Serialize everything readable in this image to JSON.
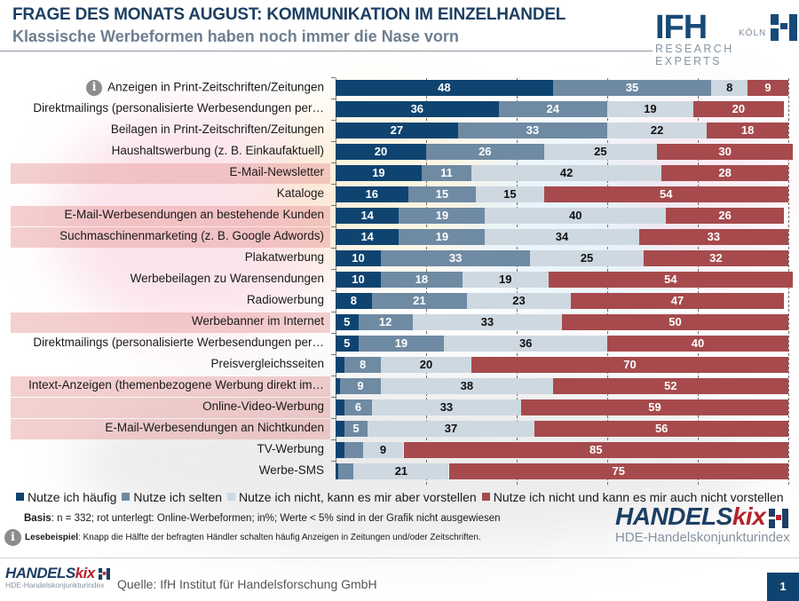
{
  "header": {
    "title": "FRAGE DES MONATS AUGUST: KOMMUNIKATION IM EINZELHANDEL",
    "subtitle": "Klassische Werbeformen haben noch immer die Nase vorn"
  },
  "ifh_logo": {
    "wordmark": "IFH",
    "city": "KÖLN",
    "tagline": "RESEARCH EXPERTS"
  },
  "chart_data": {
    "type": "bar",
    "orientation": "horizontal",
    "stacked": true,
    "title": "FRAGE DES MONATS AUGUST: KOMMUNIKATION IM EINZELHANDEL",
    "subtitle": "Klassische Werbeformen haben noch immer die Nase vorn",
    "xlabel": "",
    "ylabel": "",
    "xlim": [
      0,
      100
    ],
    "unit": "%",
    "grid": true,
    "legend_position": "bottom",
    "label_threshold": 5,
    "categories": [
      "Anzeigen in Print-Zeitschriften/Zeitungen",
      "Direktmailings (personalisierte Werbesendungen per…",
      "Beilagen in Print-Zeitschriften/Zeitungen",
      "Haushaltswerbung (z. B. Einkaufaktuell)",
      "E-Mail-Newsletter",
      "Kataloge",
      "E-Mail-Werbesendungen an bestehende Kunden",
      "Suchmaschinenmarketing (z. B. Google Adwords)",
      "Plakatwerbung",
      "Werbebeilagen zu Warensendungen",
      "Radiowerbung",
      "Werbebanner im Internet",
      "Direktmailings (personalisierte Werbesendungen per…",
      "Preisvergleichsseiten",
      "Intext-Anzeigen (themenbezogene Werbung direkt im…",
      "Online-Video-Werbung",
      "E-Mail-Werbesendungen an Nichtkunden",
      "TV-Werbung",
      "Werbe-SMS"
    ],
    "online_highlight": [
      false,
      false,
      false,
      false,
      true,
      false,
      true,
      true,
      false,
      false,
      false,
      true,
      false,
      false,
      true,
      true,
      true,
      false,
      false
    ],
    "info_icon_row": 0,
    "series": [
      {
        "name": "Nutze ich häufig",
        "color": "#0f4470",
        "values": [
          48,
          36,
          27,
          20,
          19,
          16,
          14,
          14,
          10,
          10,
          8,
          5,
          5,
          2,
          1,
          2,
          2,
          2,
          0.5
        ]
      },
      {
        "name": "Nutze ich selten",
        "color": "#6f8aa3",
        "values": [
          35,
          24,
          33,
          26,
          11,
          15,
          19,
          19,
          33,
          18,
          21,
          12,
          19,
          8,
          9,
          6,
          5,
          4,
          3.5
        ]
      },
      {
        "name": "Nutze ich nicht, kann es mir aber vorstellen",
        "color": "#ced8e1",
        "values": [
          8,
          19,
          22,
          25,
          42,
          15,
          40,
          34,
          25,
          19,
          23,
          33,
          36,
          20,
          38,
          33,
          37,
          9,
          21
        ]
      },
      {
        "name": "Nutze ich nicht und kann es mir auch nicht  vorstellen",
        "color": "#a64a4d",
        "values": [
          9,
          20,
          18,
          30,
          28,
          54,
          26,
          33,
          32,
          54,
          47,
          50,
          40,
          70,
          52,
          59,
          56,
          85,
          75
        ]
      }
    ]
  },
  "notes": {
    "basis_bold": "Basis",
    "basis_text": ": n = 332; rot unterlegt: Online-Werbeformen; in%; Werte < 5% sind in der Grafik nicht ausgewiesen",
    "example_bold": "Lesebeispiel",
    "example_text": ": Knapp die Hälfte der befragten Händler schalten häufig Anzeigen in Zeitungen und/oder Zeitschriften."
  },
  "handelskix_logo": {
    "word_main": "HANDELS",
    "word_accent": "kix",
    "subtitle": "HDE-Handelskonjunkturindex"
  },
  "footer": {
    "source": "Quelle: IfH Institut für Handelsforschung GmbH",
    "page_number": "1"
  },
  "colors": {
    "brand_dark_blue": "#0f4470",
    "brand_red": "#b5232c",
    "highlight_online": "#eaa3a3"
  }
}
